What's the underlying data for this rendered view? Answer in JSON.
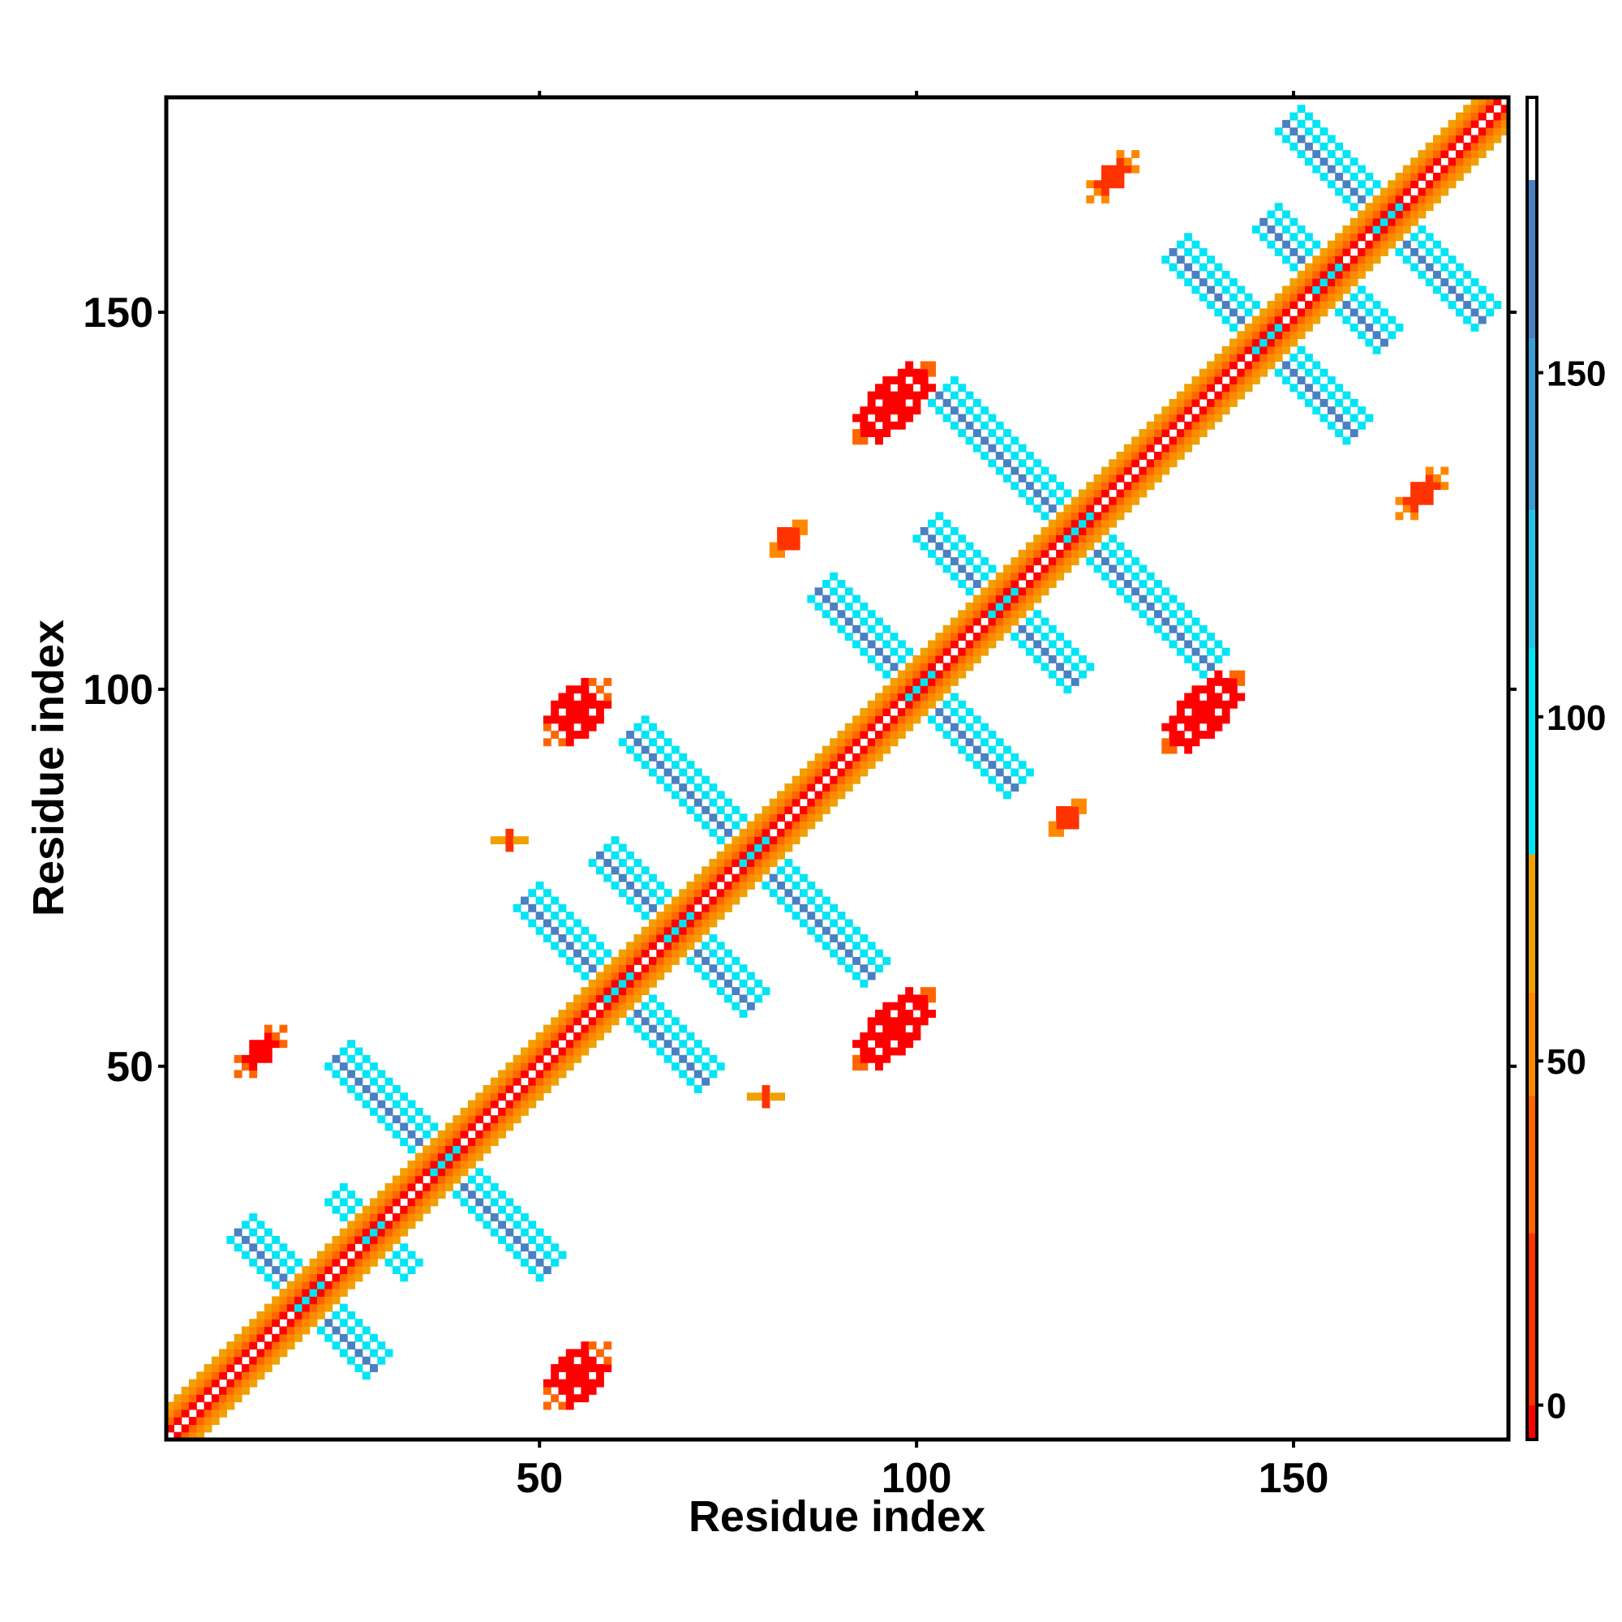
{
  "chart_data": {
    "type": "heatmap",
    "title": "",
    "xlabel": "Residue index",
    "ylabel": "Residue index",
    "xlim": [
      1,
      178
    ],
    "ylim": [
      1,
      178
    ],
    "x_ticks": [
      50,
      100,
      150
    ],
    "y_ticks": [
      50,
      100,
      150
    ],
    "grid": false,
    "symmetric": true,
    "colorbar": {
      "ticks": [
        0,
        50,
        100,
        150
      ],
      "range": [
        -5,
        190
      ],
      "segments": [
        {
          "from": -5,
          "to": 0,
          "color": "#ff0000"
        },
        {
          "from": 0,
          "to": 25,
          "color": "#ff3300"
        },
        {
          "from": 25,
          "to": 45,
          "color": "#ff6600"
        },
        {
          "from": 45,
          "to": 60,
          "color": "#ff8800"
        },
        {
          "from": 60,
          "to": 80,
          "color": "#f0a000"
        },
        {
          "from": 80,
          "to": 110,
          "color": "#00e5f5"
        },
        {
          "from": 110,
          "to": 130,
          "color": "#22c4e6"
        },
        {
          "from": 130,
          "to": 155,
          "color": "#3c9dd5"
        },
        {
          "from": 155,
          "to": 178,
          "color": "#4a80c0"
        },
        {
          "from": 178,
          "to": 190,
          "color": "#ffffff"
        }
      ]
    },
    "diagonal": {
      "from": 1,
      "to": 178
    },
    "clusters": [
      {
        "center": [
          19,
          19
        ],
        "kind": "cross",
        "arm_len": 9,
        "arm_width": 2.2
      },
      {
        "center": [
          28,
          28
        ],
        "kind": "cross",
        "arm_len": 5,
        "arm_width": 1.8
      },
      {
        "center": [
          37,
          37
        ],
        "kind": "cross",
        "arm_len": 14,
        "arm_width": 2.2
      },
      {
        "center": [
          60,
          60
        ],
        "kind": "cross",
        "arm_len": 12,
        "arm_width": 2.4
      },
      {
        "center": [
          68,
          68
        ],
        "kind": "cross",
        "arm_len": 10,
        "arm_width": 2.2
      },
      {
        "center": [
          78,
          78
        ],
        "kind": "cross",
        "arm_len": 16,
        "arm_width": 2.4
      },
      {
        "center": [
          100,
          100
        ],
        "kind": "cross",
        "arm_len": 13,
        "arm_width": 2.4
      },
      {
        "center": [
          111,
          111
        ],
        "kind": "cross",
        "arm_len": 10,
        "arm_width": 2.2
      },
      {
        "center": [
          121,
          121
        ],
        "kind": "cross",
        "arm_len": 18,
        "arm_width": 2.4
      },
      {
        "center": [
          146,
          146
        ],
        "kind": "cross",
        "arm_len": 12,
        "arm_width": 2.4
      },
      {
        "center": [
          154,
          154
        ],
        "kind": "cross",
        "arm_len": 8,
        "arm_width": 2.2
      },
      {
        "center": [
          162,
          162
        ],
        "kind": "cross",
        "arm_len": 13,
        "arm_width": 2.4
      },
      {
        "center": [
          55,
          9
        ],
        "kind": "blob",
        "value": -3,
        "size": [
          3,
          5
        ],
        "angle": 45
      },
      {
        "center": [
          97,
          55
        ],
        "kind": "blob",
        "value": -3,
        "size": [
          3,
          7
        ],
        "angle": 45
      },
      {
        "center": [
          138,
          97
        ],
        "kind": "blob",
        "value": -3,
        "size": [
          3,
          7
        ],
        "angle": 45
      },
      {
        "center": [
          97,
          138
        ],
        "kind": "blob",
        "value": -3,
        "size": [
          3,
          7
        ],
        "angle": 45
      },
      {
        "center": [
          55,
          97
        ],
        "kind": "blob",
        "value": -3,
        "size": [
          3,
          5
        ],
        "angle": 45
      },
      {
        "center": [
          13,
          52
        ],
        "kind": "blob",
        "value": -3,
        "size": [
          2,
          4
        ],
        "angle": 45
      },
      {
        "center": [
          126,
          168
        ],
        "kind": "blob",
        "value": 10,
        "size": [
          2,
          4
        ],
        "angle": 45
      },
      {
        "center": [
          167,
          126
        ],
        "kind": "blob",
        "value": 10,
        "size": [
          2,
          4
        ],
        "angle": 45
      },
      {
        "center": [
          83,
          120
        ],
        "kind": "blob",
        "value": 10,
        "size": [
          2,
          3
        ],
        "angle": 45
      },
      {
        "center": [
          120,
          83
        ],
        "kind": "blob",
        "value": 10,
        "size": [
          2,
          3
        ],
        "angle": 45
      },
      {
        "center": [
          46,
          80
        ],
        "kind": "blob",
        "value": 20,
        "size": [
          1,
          2
        ],
        "angle": 0
      },
      {
        "center": [
          80,
          46
        ],
        "kind": "blob",
        "value": 20,
        "size": [
          1,
          2
        ],
        "angle": 0
      }
    ]
  }
}
